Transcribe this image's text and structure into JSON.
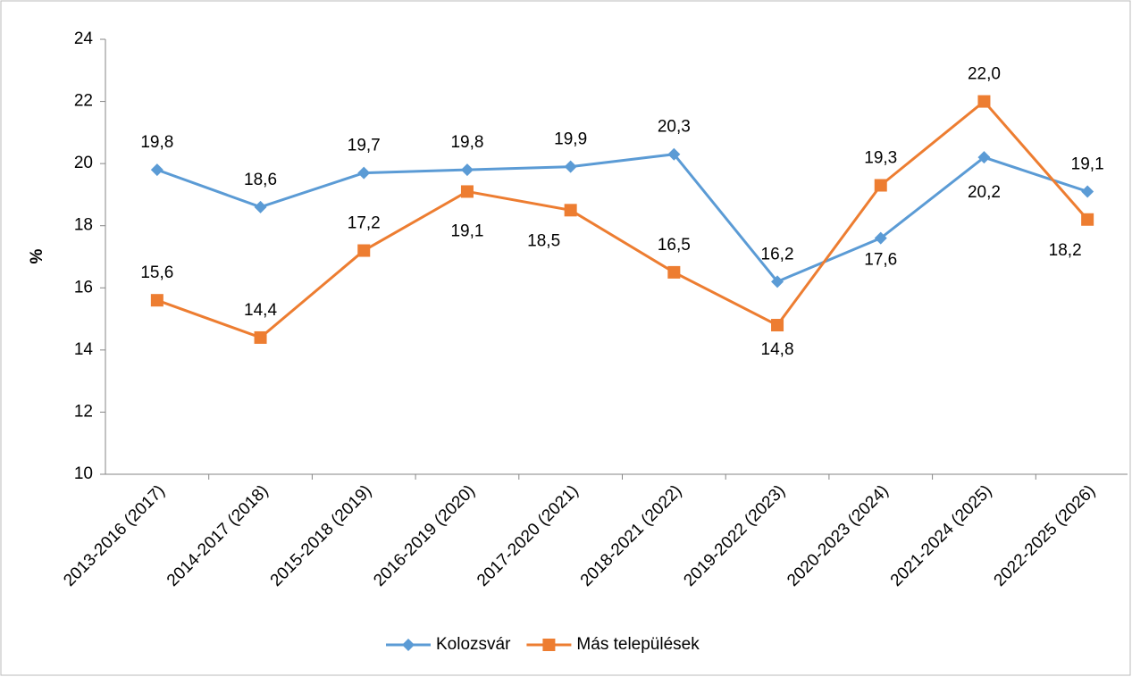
{
  "chart_data": {
    "type": "line",
    "ylabel": "%",
    "categories": [
      "2013-2016 (2017)",
      "2014-2017 (2018)",
      "2015-2018 (2019)",
      "2016-2019 (2020)",
      "2017-2020 (2021)",
      "2018-2021 (2022)",
      "2019-2022 (2023)",
      "2020-2023 (2024)",
      "2021-2024 (2025)",
      "2022-2025 (2026)"
    ],
    "series": [
      {
        "name": "Kolozsvár",
        "color": "#5b9bd5",
        "marker": "diamond",
        "values": [
          19.8,
          18.6,
          19.7,
          19.8,
          19.9,
          20.3,
          16.2,
          17.6,
          20.2,
          19.1
        ],
        "value_labels": [
          "19,8",
          "18,6",
          "19,7",
          "19,8",
          "19,9",
          "20,3",
          "16,2",
          "17,6",
          "20,2",
          "19,1"
        ]
      },
      {
        "name": "Más települések",
        "color": "#ed7d31",
        "marker": "square",
        "values": [
          15.6,
          14.4,
          17.2,
          19.1,
          18.5,
          16.5,
          14.8,
          19.3,
          22.0,
          18.2
        ],
        "value_labels": [
          "15,6",
          "14,4",
          "17,2",
          "19,1",
          "18,5",
          "16,5",
          "14,8",
          "19,3",
          "22,0",
          "18,2"
        ]
      }
    ],
    "ylim": [
      10,
      24
    ],
    "yticks": [
      10,
      12,
      14,
      16,
      18,
      20,
      22,
      24
    ],
    "grid": false,
    "legend": "bottom"
  }
}
